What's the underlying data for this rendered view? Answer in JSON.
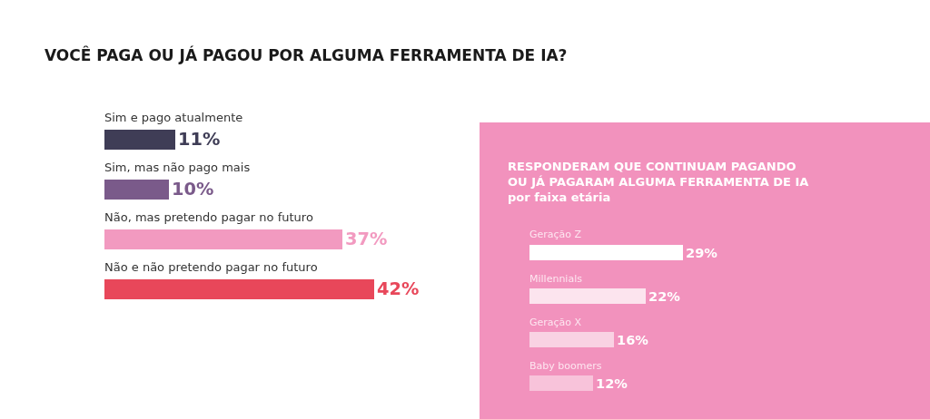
{
  "chart_data": [
    {
      "type": "bar",
      "orientation": "horizontal",
      "title": "VOCÊ PAGA OU JÁ PAGOU POR ALGUMA FERRAMENTA DE IA?",
      "categories": [
        "Sim e pago atualmente",
        "Sim, mas não pago mais",
        "Não, mas pretendo pagar no futuro",
        "Não e não pretendo pagar no futuro"
      ],
      "values": [
        11,
        10,
        37,
        42
      ],
      "value_labels": [
        "11%",
        "10%",
        "37%",
        "42%"
      ],
      "colors": [
        "#3f3d56",
        "#7a5a8a",
        "#f29ac0",
        "#e8475a"
      ],
      "tick_labels": false,
      "grid": false
    },
    {
      "type": "bar",
      "orientation": "horizontal",
      "title": "RESPONDERAM QUE CONTINUAM PAGANDO\nOU JÁ PAGARAM ALGUMA FERRAMENTA DE IA\npor faixa etária",
      "categories": [
        "Geração Z",
        "Millennials",
        "Geração X",
        "Baby boomers"
      ],
      "values": [
        29,
        22,
        16,
        12
      ],
      "value_labels": [
        "29%",
        "22%",
        "16%",
        "12%"
      ],
      "colors": [
        "#ffffff",
        "#fce4ee",
        "#f9d2e3",
        "#f8c3da"
      ],
      "tick_labels": false,
      "grid": false
    }
  ]
}
